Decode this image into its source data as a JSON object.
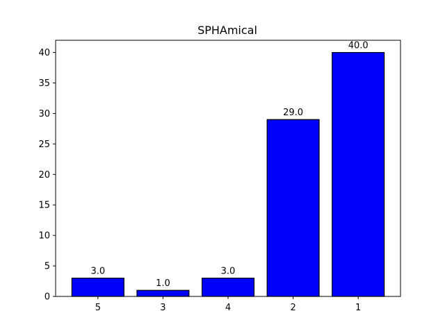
{
  "chart_data": {
    "type": "bar",
    "title": "SPHAmical",
    "xlabel": "",
    "ylabel": "",
    "categories": [
      "5",
      "3",
      "4",
      "2",
      "1"
    ],
    "values": [
      3.0,
      1.0,
      3.0,
      29.0,
      40.0
    ],
    "value_labels": [
      "3.0",
      "1.0",
      "3.0",
      "29.0",
      "40.0"
    ],
    "ylim": [
      0,
      42
    ],
    "yticks": [
      0,
      5,
      10,
      15,
      20,
      25,
      30,
      35,
      40
    ],
    "ytick_labels": [
      "0",
      "5",
      "10",
      "15",
      "20",
      "25",
      "30",
      "35",
      "40"
    ],
    "grid": false,
    "bar_color": "#0000ff",
    "edge_color": "#000000"
  }
}
